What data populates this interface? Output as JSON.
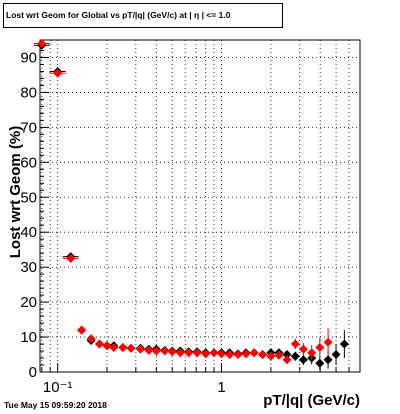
{
  "chart_data": {
    "type": "scatter",
    "title": "Lost wrt Geom for Global vs pT/|q| (GeV/c) at | η | <= 1.0",
    "xlabel": "pT/|q| (GeV/c)",
    "ylabel": "Lost wrt Geom (%)",
    "xscale": "log",
    "xlim": [
      0.078,
      7.0
    ],
    "ylim": [
      0,
      95
    ],
    "grid": true,
    "xticks": [
      {
        "value": 0.1,
        "label": "10⁻¹"
      },
      {
        "value": 1,
        "label": "1"
      }
    ],
    "yticks": [
      0,
      10,
      20,
      30,
      40,
      50,
      60,
      70,
      80,
      90
    ],
    "colors": {
      "series_black": "#000000",
      "series_red": "#ff0000"
    },
    "series": [
      {
        "color": "black",
        "x": [
          0.08,
          0.1,
          0.12,
          0.14,
          0.16,
          0.18,
          0.2,
          0.22,
          0.25,
          0.28,
          0.32,
          0.36,
          0.4,
          0.45,
          0.5,
          0.56,
          0.63,
          0.71,
          0.8,
          0.9,
          1.0,
          1.12,
          1.26,
          1.41,
          1.58,
          1.78,
          2.0,
          2.24,
          2.51,
          2.82,
          3.16,
          3.55,
          3.98,
          4.47,
          5.0,
          5.62
        ],
        "y": [
          93.5,
          86,
          33,
          12,
          9,
          8,
          7.5,
          7.5,
          7,
          6.8,
          6.8,
          6.5,
          6.5,
          6.2,
          6,
          6,
          5.8,
          5.8,
          5.5,
          5.5,
          5.5,
          5.5,
          5.2,
          5.5,
          5.5,
          5,
          5.5,
          5.5,
          5,
          4.5,
          3.5,
          4,
          2.5,
          3.5,
          5,
          8
        ],
        "yerr": [
          1.0,
          1.0,
          1.0,
          0.8,
          0.6,
          0.5,
          0.5,
          0.5,
          0.4,
          0.4,
          0.4,
          0.4,
          0.4,
          0.4,
          0.4,
          0.4,
          0.4,
          0.4,
          0.4,
          0.4,
          0.5,
          0.5,
          0.5,
          0.6,
          0.7,
          0.8,
          0.9,
          1.0,
          1.1,
          1.3,
          1.5,
          1.8,
          2.0,
          2.5,
          3.0,
          4.0
        ]
      },
      {
        "color": "red",
        "x": [
          0.08,
          0.1,
          0.12,
          0.14,
          0.16,
          0.18,
          0.2,
          0.22,
          0.25,
          0.28,
          0.32,
          0.36,
          0.4,
          0.45,
          0.5,
          0.56,
          0.63,
          0.71,
          0.8,
          0.9,
          1.0,
          1.12,
          1.26,
          1.41,
          1.58,
          1.78,
          2.0,
          2.24,
          2.51,
          2.82,
          3.16,
          3.55,
          3.98,
          4.47
        ],
        "y": [
          94,
          85.5,
          32.5,
          12,
          9.5,
          8,
          7.5,
          7,
          7,
          6.8,
          6.5,
          6.2,
          6,
          6,
          5.8,
          5.5,
          5.5,
          5.5,
          5.2,
          5.5,
          5.2,
          5,
          5,
          5.2,
          5.5,
          5,
          4.5,
          4.8,
          3.5,
          8,
          6.5,
          5.5,
          7,
          8.5
        ],
        "yerr": [
          1.0,
          1.0,
          1.0,
          0.8,
          0.6,
          0.5,
          0.5,
          0.5,
          0.4,
          0.4,
          0.4,
          0.4,
          0.4,
          0.4,
          0.4,
          0.4,
          0.4,
          0.4,
          0.4,
          0.4,
          0.5,
          0.5,
          0.5,
          0.6,
          0.7,
          0.8,
          0.9,
          1.0,
          1.2,
          1.5,
          1.8,
          2.2,
          2.8,
          4.0
        ]
      }
    ]
  },
  "timestamp": "Tue May 15 09:59:20 2018"
}
